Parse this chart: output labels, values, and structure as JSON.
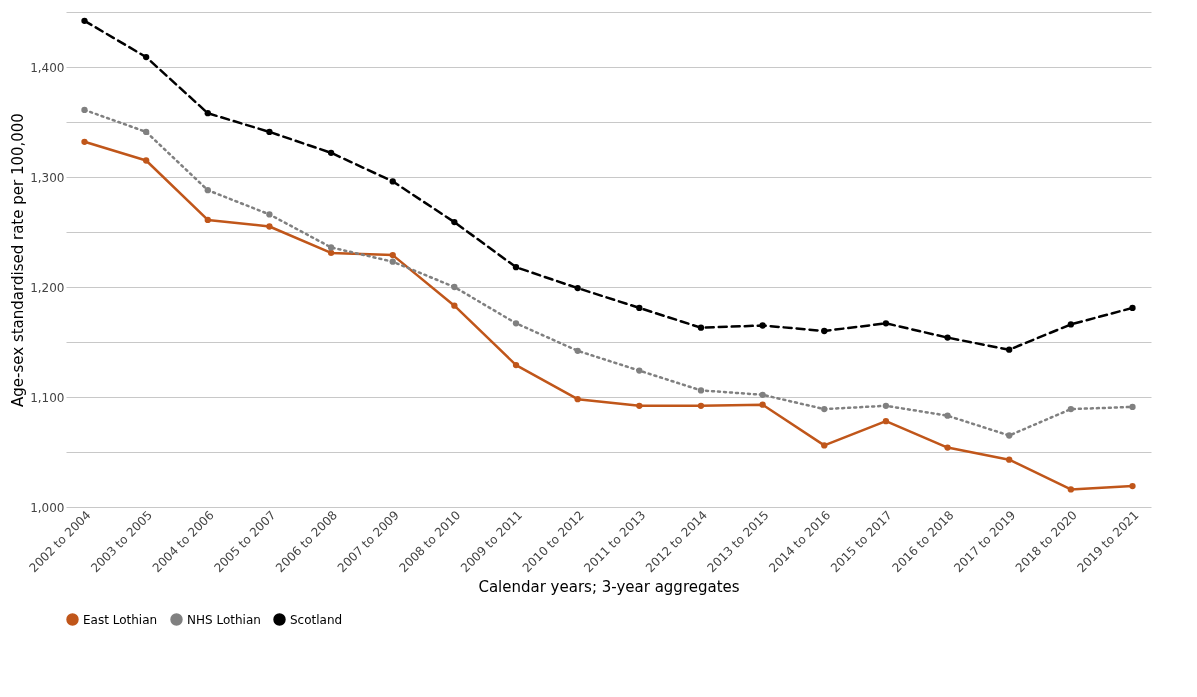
{
  "chart_data": {
    "type": "line",
    "xlabel": "Calendar years; 3-year aggregates",
    "ylabel": "Age-sex standardised rate per 100,000",
    "categories": [
      "2002 to 2004",
      "2003 to 2005",
      "2004 to 2006",
      "2005 to 2007",
      "2006 to 2008",
      "2007 to 2009",
      "2008 to 2010",
      "2009 to 2011",
      "2010 to 2012",
      "2011 to 2013",
      "2012 to 2014",
      "2013 to 2015",
      "2014 to 2016",
      "2015 to 2017",
      "2016 to 2018",
      "2017 to 2019",
      "2018 to 2020",
      "2019 to 2021"
    ],
    "series": [
      {
        "name": "East Lothian",
        "color": "#c0561a",
        "line_style": "solid",
        "values": [
          1332,
          1315,
          1261,
          1255,
          1231,
          1229,
          1183,
          1129,
          1098,
          1092,
          1092,
          1093,
          1056,
          1078,
          1054,
          1043,
          1016,
          1019
        ]
      },
      {
        "name": "NHS Lothian",
        "color": "#808080",
        "line_style": "dotted",
        "values": [
          1361,
          1341,
          1288,
          1266,
          1236,
          1223,
          1200,
          1167,
          1142,
          1124,
          1106,
          1102,
          1089,
          1092,
          1083,
          1065,
          1089,
          1091
        ]
      },
      {
        "name": "Scotland",
        "color": "#000000",
        "line_style": "dashed",
        "values": [
          1442,
          1409,
          1358,
          1341,
          1322,
          1296,
          1259,
          1218,
          1199,
          1181,
          1163,
          1165,
          1160,
          1167,
          1154,
          1143,
          1166,
          1181
        ]
      }
    ],
    "ylim": [
      1000,
      1450
    ],
    "yticks": [
      {
        "value": 1000,
        "label": "1,000"
      },
      {
        "value": 1050,
        "label": null
      },
      {
        "value": 1100,
        "label": "1,100"
      },
      {
        "value": 1150,
        "label": null
      },
      {
        "value": 1200,
        "label": "1,200"
      },
      {
        "value": 1250,
        "label": null
      },
      {
        "value": 1300,
        "label": "1,300"
      },
      {
        "value": 1350,
        "label": null
      },
      {
        "value": 1400,
        "label": "1,400"
      },
      {
        "value": 1450,
        "label": null
      }
    ],
    "grid": "y",
    "legend": "bottom",
    "marker": "circle"
  }
}
